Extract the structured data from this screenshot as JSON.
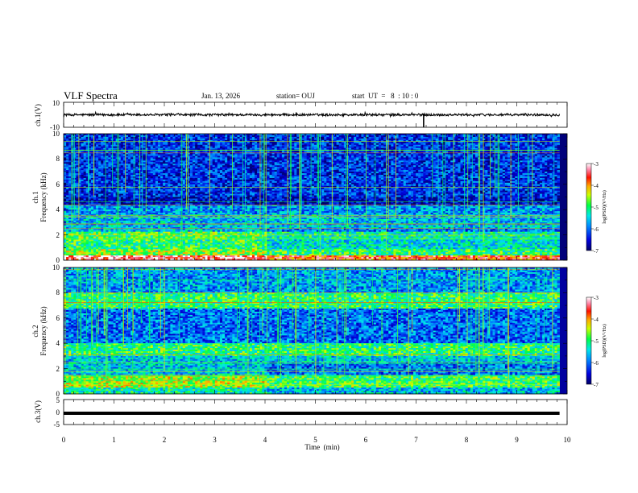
{
  "header": {
    "title": "VLF Spectra",
    "date": "Jan. 13, 2026",
    "station": "station= OUJ",
    "start": "start  UT  =   8  : 10 : 0"
  },
  "chart_data": [
    {
      "id": "ch1-waveform",
      "type": "line",
      "ylabel": "ch.1(V)",
      "ylim": [
        -10,
        10
      ],
      "yticks": [
        "10",
        "-10"
      ],
      "xlim": [
        0,
        10
      ],
      "series": [
        {
          "description": "waveform, amplitude about +/-1 V, spike near 7.15 min",
          "color": "#000000"
        }
      ]
    },
    {
      "id": "ch1-spectrogram",
      "type": "heatmap",
      "ylabel": [
        "ch.1",
        "Frequency (kHz)"
      ],
      "ylim": [
        0,
        10
      ],
      "yticks": [
        "0",
        "2",
        "4",
        "6",
        "8",
        "10"
      ],
      "xlim": [
        0,
        10
      ],
      "data_end_min": 9.85,
      "colorbar": {
        "label": "log(PSD)(V²/Hz)",
        "ticks": [
          "-3",
          "-4",
          "-5",
          "-6",
          "-7"
        ],
        "range": [
          -7,
          -3
        ]
      },
      "bands": [
        {
          "f": [
            0.0,
            0.4
          ],
          "level": -3.3
        },
        {
          "f": [
            0.4,
            0.9
          ],
          "level": -4.6
        },
        {
          "f": [
            0.9,
            1.6
          ],
          "level": -5.0
        },
        {
          "f": [
            1.6,
            2.2
          ],
          "level": -4.8
        },
        {
          "f": [
            2.2,
            3.6
          ],
          "level": -5.6
        },
        {
          "f": [
            3.6,
            4.4
          ],
          "level": -5.8
        },
        {
          "f": [
            4.4,
            5.0
          ],
          "level": -6.6
        },
        {
          "f": [
            5.0,
            10.0
          ],
          "level": -6.3
        }
      ]
    },
    {
      "id": "ch2-spectrogram",
      "type": "heatmap",
      "ylabel": [
        "ch.2",
        "Frequency (kHz)"
      ],
      "ylim": [
        0,
        10
      ],
      "yticks": [
        "0",
        "2",
        "4",
        "6",
        "8",
        "10"
      ],
      "xlim": [
        0,
        10
      ],
      "data_end_min": 9.85,
      "colorbar": {
        "label": "log(PSD)(V²/Hz)",
        "ticks": [
          "-3",
          "-4",
          "-5",
          "-6",
          "-7"
        ],
        "range": [
          -7,
          -3
        ]
      },
      "bands": [
        {
          "f": [
            0.0,
            0.5
          ],
          "level": -5.2
        },
        {
          "f": [
            0.5,
            1.5
          ],
          "level": -4.5
        },
        {
          "f": [
            1.5,
            3.0
          ],
          "level": -5.6
        },
        {
          "f": [
            3.0,
            4.0
          ],
          "level": -5.0
        },
        {
          "f": [
            4.0,
            6.8
          ],
          "level": -6.0
        },
        {
          "f": [
            6.8,
            8.0
          ],
          "level": -5.0
        },
        {
          "f": [
            8.0,
            10.0
          ],
          "level": -5.8
        }
      ]
    },
    {
      "id": "ch3-waveform",
      "type": "line",
      "ylabel": "ch.3(V)",
      "ylim": [
        -5,
        5
      ],
      "yticks": [
        "5",
        "0",
        "-5"
      ],
      "xlim": [
        0,
        10
      ],
      "series": [
        {
          "description": "flat trace near -0.5 V",
          "color": "#000000",
          "value": -0.5
        }
      ]
    }
  ],
  "xaxis": {
    "label": "Time  (min)",
    "ticks": [
      "0",
      "1",
      "2",
      "3",
      "4",
      "5",
      "6",
      "7",
      "8",
      "9",
      "10"
    ],
    "range": [
      0,
      10
    ]
  }
}
